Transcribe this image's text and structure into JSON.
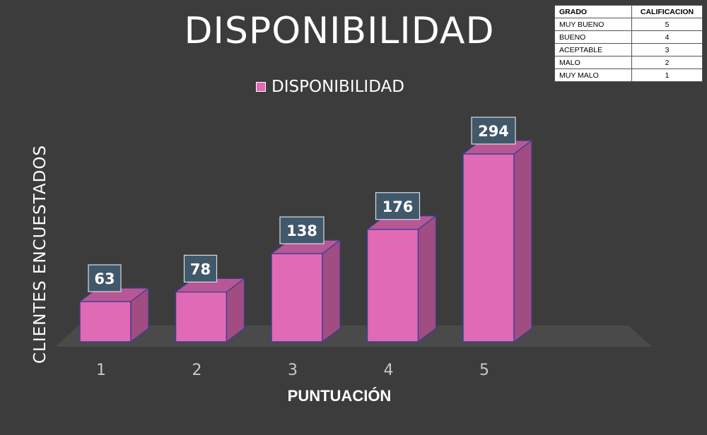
{
  "chart_data": {
    "type": "bar",
    "title": "DISPONIBILIDAD",
    "categories": [
      "1",
      "2",
      "3",
      "4",
      "5"
    ],
    "series": [
      {
        "name": "DISPONIBILIDAD",
        "values": [
          63,
          78,
          138,
          176,
          294
        ]
      }
    ],
    "xlabel": "PUNTUACIÓN",
    "ylabel": "CLIENTES ENCUESTADOS",
    "ylim": [
      0,
      294
    ],
    "grid": false,
    "legend_position": "top-center",
    "bar_color": "#e06ab6"
  },
  "grade_table": {
    "headers": [
      "GRADO",
      "CALIFICACION"
    ],
    "rows": [
      [
        "MUY BUENO",
        "5"
      ],
      [
        "BUENO",
        "4"
      ],
      [
        "ACEPTABLE",
        "3"
      ],
      [
        "MALO",
        "2"
      ],
      [
        "MUY MALO",
        "1"
      ]
    ]
  }
}
